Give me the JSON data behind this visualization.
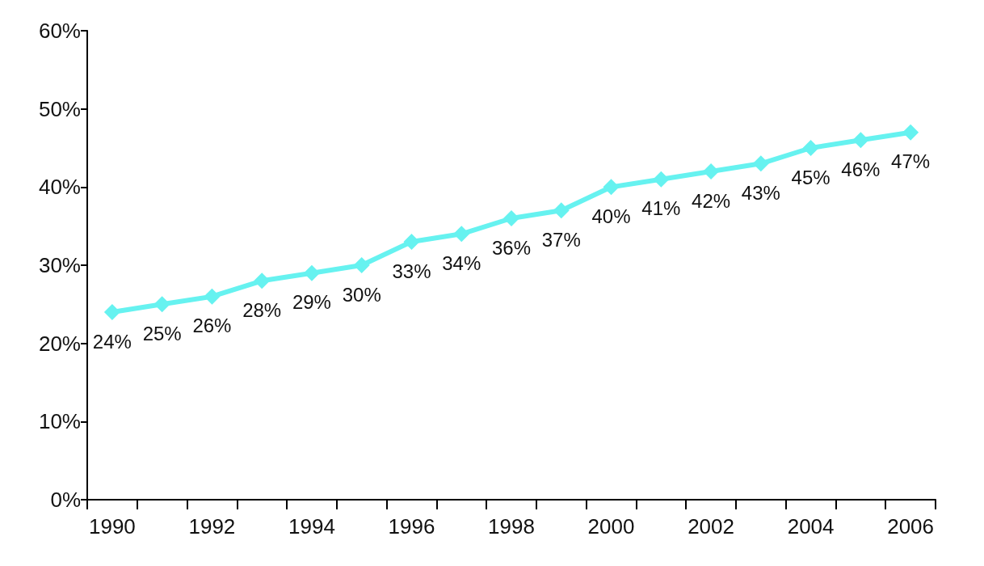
{
  "chart_data": {
    "type": "line",
    "categories": [
      "1990",
      null,
      "1992",
      null,
      "1994",
      null,
      "1996",
      null,
      "1998",
      null,
      "2000",
      null,
      "2002",
      null,
      "2004",
      null,
      "2006"
    ],
    "values": [
      24,
      25,
      26,
      28,
      29,
      30,
      33,
      34,
      36,
      37,
      40,
      41,
      42,
      43,
      45,
      46,
      47
    ],
    "value_labels": [
      "24%",
      "25%",
      "26%",
      "28%",
      "29%",
      "30%",
      "33%",
      "34%",
      "36%",
      "37%",
      "40%",
      "41%",
      "42%",
      "43%",
      "45%",
      "46%",
      "47%"
    ],
    "color": "#66f2f0",
    "ylim": [
      0,
      60
    ],
    "yticks": [
      {
        "value": 0,
        "label": "0%"
      },
      {
        "value": 10,
        "label": "10%"
      },
      {
        "value": 20,
        "label": "20%"
      },
      {
        "value": 30,
        "label": "30%"
      },
      {
        "value": 40,
        "label": "40%"
      },
      {
        "value": 50,
        "label": "50%"
      },
      {
        "value": 60,
        "label": "60%"
      }
    ],
    "marker": "diamond",
    "line_style": "solid",
    "grid": false
  }
}
